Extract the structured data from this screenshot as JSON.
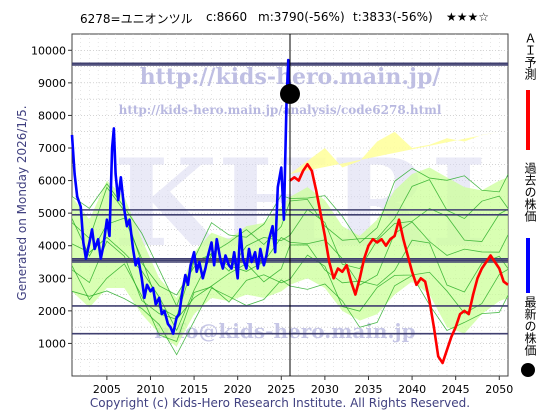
{
  "header": {
    "ticker": "6278=ユニオンツル",
    "close": "c:8660",
    "min": "m:3790(-56%)",
    "target": "t:3833(-56%)",
    "stars": "★★★☆"
  },
  "side_label": "Generated on Monday 2026/1/5.",
  "footer": "Copyright (c) Kids-Hero Research Institute. All Rights Reserved.",
  "watermark": {
    "url1": "http://kids-hero.main.jp/",
    "url2": "http://kids-hero.main.jp/analysis/code6278.html",
    "big": "KHRI",
    "url3": "info@kids-hero.main.jp"
  },
  "legend": {
    "ai_label": "ＡＩ予測",
    "past_label": "過去の株価",
    "latest_label": "最新の株価"
  },
  "colors": {
    "ai_forecast": "#ff0000",
    "past_price": "#0000ff",
    "band_fill": "#ccff99",
    "band_fill_future": "#ffff99",
    "band_line": "#22aa22",
    "hline": "#404070",
    "marker": "#000000"
  },
  "chart_data": {
    "type": "line",
    "xlim": [
      2001,
      2051
    ],
    "ylim": [
      0,
      10500
    ],
    "xticks": [
      2005,
      2010,
      2015,
      2020,
      2025,
      2030,
      2035,
      2040,
      2045,
      2050
    ],
    "yticks": [
      1000,
      2000,
      3000,
      4000,
      5000,
      6000,
      7000,
      8000,
      9000,
      10000
    ],
    "grid": true,
    "current_year": 2026.0,
    "latest_price": {
      "x": 2026.0,
      "y": 8660
    },
    "horizontal_lines": [
      9600,
      9550,
      5100,
      4950,
      3600,
      3550,
      3500,
      2150,
      1300
    ],
    "series": [
      {
        "role": "past",
        "x": [
          2001.0,
          2001.3,
          2001.6,
          2002.0,
          2002.3,
          2002.6,
          2003.0,
          2003.3,
          2003.6,
          2004.0,
          2004.3,
          2004.6,
          2005.0,
          2005.3,
          2005.6,
          2005.8,
          2006.0,
          2006.3,
          2006.6,
          2007.0,
          2007.3,
          2007.6,
          2008.0,
          2008.3,
          2008.6,
          2009.0,
          2009.3,
          2009.6,
          2010.0,
          2010.3,
          2010.6,
          2011.0,
          2011.3,
          2011.6,
          2012.0,
          2012.3,
          2012.6,
          2013.0,
          2013.3,
          2013.6,
          2014.0,
          2014.3,
          2014.6,
          2015.0,
          2015.3,
          2015.6,
          2016.0,
          2016.3,
          2016.6,
          2017.0,
          2017.3,
          2017.6,
          2018.0,
          2018.3,
          2018.6,
          2019.0,
          2019.3,
          2019.6,
          2020.0,
          2020.3,
          2020.6,
          2021.0,
          2021.3,
          2021.6,
          2022.0,
          2022.3,
          2022.6,
          2023.0,
          2023.3,
          2023.6,
          2024.0,
          2024.3,
          2024.6,
          2025.0,
          2025.3,
          2025.6,
          2025.8,
          2026.0
        ],
        "y": [
          7400,
          6200,
          5500,
          5200,
          4100,
          3600,
          4100,
          4500,
          3900,
          4200,
          3600,
          4000,
          4800,
          4300,
          7000,
          7600,
          6200,
          5400,
          6100,
          5100,
          4600,
          4800,
          3900,
          3400,
          3600,
          3000,
          2400,
          2800,
          2600,
          2700,
          2200,
          2400,
          1900,
          2000,
          1600,
          1500,
          1300,
          1800,
          1900,
          2500,
          3100,
          2800,
          3400,
          3800,
          3200,
          3500,
          3000,
          3300,
          3700,
          4100,
          3400,
          4200,
          3600,
          3300,
          3700,
          3400,
          3300,
          3800,
          3000,
          4500,
          3600,
          3300,
          3900,
          3500,
          3800,
          3300,
          3900,
          3400,
          3700,
          4200,
          4600,
          3800,
          5800,
          6400,
          4800,
          8400,
          9700,
          8660
        ]
      },
      {
        "role": "forecast",
        "x": [
          2026.0,
          2026.5,
          2027.0,
          2027.5,
          2028.0,
          2028.5,
          2029.0,
          2029.5,
          2030.0,
          2030.5,
          2031.0,
          2031.5,
          2032.0,
          2032.5,
          2033.0,
          2033.5,
          2034.0,
          2034.5,
          2035.0,
          2035.5,
          2036.0,
          2036.5,
          2037.0,
          2037.5,
          2038.0,
          2038.5,
          2039.0,
          2039.5,
          2040.0,
          2040.5,
          2041.0,
          2041.5,
          2042.0,
          2042.5,
          2043.0,
          2043.5,
          2044.0,
          2044.5,
          2045.0,
          2045.5,
          2046.0,
          2046.5,
          2047.0,
          2047.5,
          2048.0,
          2048.5,
          2049.0,
          2049.5,
          2050.0,
          2050.5,
          2051.0
        ],
        "y": [
          6000,
          6100,
          6000,
          6300,
          6500,
          6300,
          5700,
          5000,
          4300,
          3500,
          3000,
          3300,
          3200,
          3400,
          2900,
          2500,
          3000,
          3600,
          4000,
          4200,
          4100,
          4200,
          4000,
          4200,
          4300,
          4800,
          4200,
          3700,
          3200,
          2800,
          3000,
          2900,
          2300,
          1500,
          600,
          400,
          800,
          1200,
          1500,
          1900,
          2000,
          1900,
          2500,
          3000,
          3300,
          3500,
          3700,
          3500,
          3300,
          2900,
          2800
        ]
      }
    ],
    "band": {
      "x": [
        2001,
        2003,
        2005,
        2007,
        2009,
        2011,
        2013,
        2015,
        2017,
        2019,
        2021,
        2023,
        2025,
        2026,
        2028,
        2030,
        2032,
        2034,
        2036,
        2038,
        2040,
        2042,
        2044,
        2046,
        2048,
        2050,
        2051
      ],
      "upper": [
        5500,
        4800,
        6000,
        5500,
        4200,
        3000,
        2400,
        3800,
        4400,
        4200,
        4600,
        4700,
        5200,
        5500,
        5800,
        5400,
        4600,
        4300,
        4800,
        5700,
        6200,
        6400,
        6100,
        5800,
        5700,
        6000,
        6100
      ],
      "lower": [
        2600,
        2100,
        2700,
        2700,
        1900,
        1300,
        900,
        1900,
        2400,
        2300,
        2500,
        2400,
        2600,
        2800,
        3000,
        2700,
        2000,
        1700,
        1900,
        2500,
        2900,
        2500,
        1500,
        1300,
        1900,
        2300,
        2400
      ],
      "future_upper": [
        6200,
        6600,
        7000,
        6400,
        6600,
        7200,
        7500,
        7000,
        7100,
        7300,
        7200,
        7400,
        7500
      ],
      "future_start": 2026
    }
  }
}
